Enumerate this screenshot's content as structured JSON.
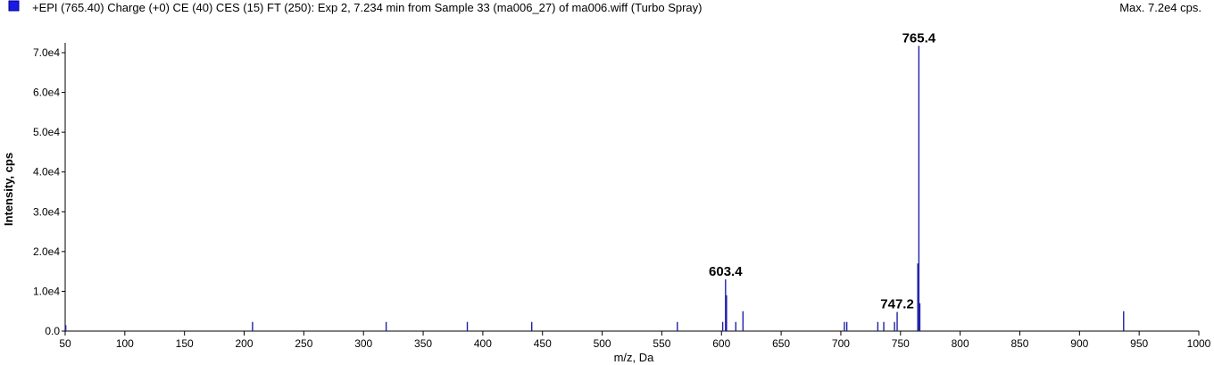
{
  "header": {
    "title": "+EPI (765.40) Charge (+0) CE (40) CES (15) FT (250): Exp 2, 7.234 min from Sample 33 (ma006_27) of ma006.wiff (Turbo Spray)",
    "max_label": "Max. 7.2e4 cps."
  },
  "colors": {
    "series": "#1f1fa8",
    "legend_square": "#1a1ae6",
    "axis": "#000000"
  },
  "chart_data": {
    "type": "bar",
    "title": "+EPI (765.40) Charge (+0) CE (40) CES (15) FT (250): Exp 2, 7.234 min from Sample 33 (ma006_27) of ma006.wiff (Turbo Spray)",
    "xlabel": "m/z, Da",
    "ylabel": "Intensity, cps",
    "xlim": [
      50,
      1000
    ],
    "ylim": [
      0,
      72000
    ],
    "grid": false,
    "x_ticks": [
      50,
      100,
      150,
      200,
      250,
      300,
      350,
      400,
      450,
      500,
      550,
      600,
      650,
      700,
      750,
      800,
      850,
      900,
      950,
      1000
    ],
    "y_ticks": [
      {
        "value": 0,
        "label": "0.0"
      },
      {
        "value": 10000,
        "label": "1.0e4"
      },
      {
        "value": 20000,
        "label": "2.0e4"
      },
      {
        "value": 30000,
        "label": "3.0e4"
      },
      {
        "value": 40000,
        "label": "4.0e4"
      },
      {
        "value": 50000,
        "label": "5.0e4"
      },
      {
        "value": 60000,
        "label": "6.0e4"
      },
      {
        "value": 70000,
        "label": "7.0e4"
      }
    ],
    "peaks": [
      {
        "mz": 50.5,
        "intensity": 1500
      },
      {
        "mz": 207,
        "intensity": 2300
      },
      {
        "mz": 319,
        "intensity": 2300
      },
      {
        "mz": 387,
        "intensity": 2300
      },
      {
        "mz": 441,
        "intensity": 2300
      },
      {
        "mz": 563,
        "intensity": 2300
      },
      {
        "mz": 601,
        "intensity": 2300
      },
      {
        "mz": 603.4,
        "intensity": 13000
      },
      {
        "mz": 604.2,
        "intensity": 9000
      },
      {
        "mz": 612,
        "intensity": 2300
      },
      {
        "mz": 618,
        "intensity": 5000
      },
      {
        "mz": 703,
        "intensity": 2300
      },
      {
        "mz": 705,
        "intensity": 2300
      },
      {
        "mz": 731,
        "intensity": 2300
      },
      {
        "mz": 736,
        "intensity": 2300
      },
      {
        "mz": 745,
        "intensity": 2300
      },
      {
        "mz": 747.2,
        "intensity": 4800
      },
      {
        "mz": 764.5,
        "intensity": 17000
      },
      {
        "mz": 765.4,
        "intensity": 71700
      },
      {
        "mz": 766.2,
        "intensity": 7000
      },
      {
        "mz": 937,
        "intensity": 5000
      }
    ],
    "annotations": [
      {
        "text": "765.4",
        "mz": 765.4,
        "intensity": 71700
      },
      {
        "text": "603.4",
        "mz": 603.4,
        "intensity": 13000
      },
      {
        "text": "747.2",
        "mz": 747.2,
        "intensity": 4800
      }
    ]
  }
}
